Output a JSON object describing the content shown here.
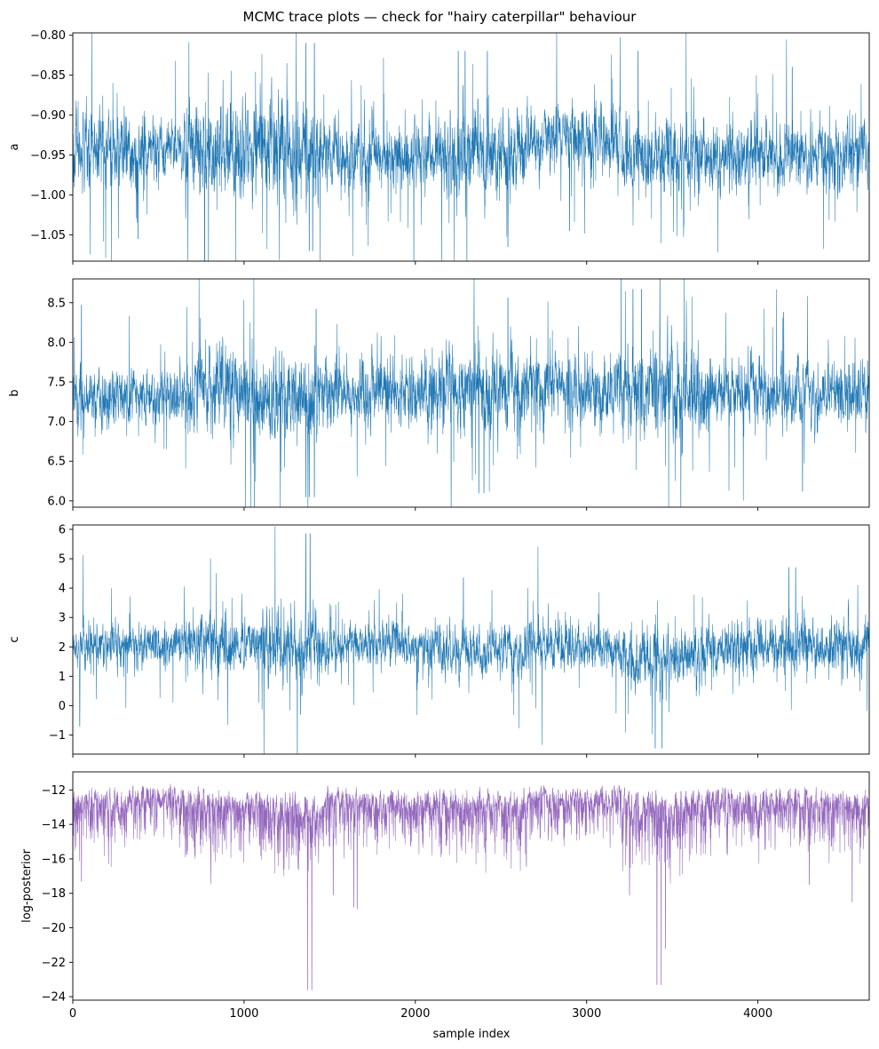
{
  "figure": {
    "title": "MCMC trace plots — check for \"hairy caterpillar\" behaviour",
    "xlabel": "sample index"
  },
  "colors": {
    "trace_blue": "#1f77b4",
    "trace_purple": "#9467bd"
  },
  "chart_data": [
    {
      "type": "line",
      "ylabel": "a",
      "color": "#1f77b4",
      "x_range": [
        0,
        4650
      ],
      "ylim": [
        -1.083,
        -0.797
      ],
      "yticks": [
        -1.05,
        -1.0,
        -0.95,
        -0.9,
        -0.85,
        -0.8
      ],
      "ytick_labels": [
        "−1.05",
        "−1.00",
        "−0.95",
        "−0.90",
        "−0.85",
        "−0.80"
      ],
      "xticks": [
        0,
        1000,
        2000,
        3000,
        4000
      ],
      "xtick_labels_shown": false,
      "n_samples": 4650,
      "center": -0.945,
      "typical_band": [
        -0.99,
        -0.9
      ],
      "observed_range": [
        -1.07,
        -0.81
      ],
      "segments": [
        {
          "x": [
            0,
            350
          ],
          "band": [
            -0.99,
            -0.9
          ]
        },
        {
          "x": [
            350,
            650
          ],
          "band": [
            -0.98,
            -0.91
          ]
        },
        {
          "x": [
            650,
            1100
          ],
          "band": [
            -1.0,
            -0.88
          ]
        },
        {
          "x": [
            1100,
            1450
          ],
          "band": [
            -1.01,
            -0.88
          ]
        },
        {
          "x": [
            1450,
            2150
          ],
          "band": [
            -0.99,
            -0.91
          ]
        },
        {
          "x": [
            2150,
            2650
          ],
          "band": [
            -1.0,
            -0.9
          ]
        },
        {
          "x": [
            2650,
            3200
          ],
          "band": [
            -0.97,
            -0.89
          ]
        },
        {
          "x": [
            3200,
            3700
          ],
          "band": [
            -1.0,
            -0.91
          ]
        },
        {
          "x": [
            3700,
            4650
          ],
          "band": [
            -0.99,
            -0.91
          ]
        }
      ],
      "spikes": [
        {
          "x": 1360,
          "y": -0.81
        },
        {
          "x": 1380,
          "y": -0.81
        },
        {
          "x": 1410,
          "y": -0.81
        },
        {
          "x": 2250,
          "y": -0.82
        },
        {
          "x": 2290,
          "y": -0.82
        },
        {
          "x": 2420,
          "y": -0.82
        },
        {
          "x": 3300,
          "y": -0.82
        },
        {
          "x": 4200,
          "y": -0.84
        },
        {
          "x": 1380,
          "y": -1.07
        },
        {
          "x": 1400,
          "y": -1.07
        },
        {
          "x": 2540,
          "y": -1.065
        },
        {
          "x": 380,
          "y": -1.055
        },
        {
          "x": 2900,
          "y": -1.045
        }
      ]
    },
    {
      "type": "line",
      "ylabel": "b",
      "color": "#1f77b4",
      "x_range": [
        0,
        4650
      ],
      "ylim": [
        5.92,
        8.8
      ],
      "yticks": [
        6.0,
        6.5,
        7.0,
        7.5,
        8.0,
        8.5
      ],
      "ytick_labels": [
        "6.0",
        "6.5",
        "7.0",
        "7.5",
        "8.0",
        "8.5"
      ],
      "xticks": [
        0,
        1000,
        2000,
        3000,
        4000
      ],
      "xtick_labels_shown": false,
      "n_samples": 4650,
      "center": 7.33,
      "typical_band": [
        6.9,
        7.75
      ],
      "observed_range": [
        6.05,
        8.67
      ],
      "segments": [
        {
          "x": [
            0,
            350
          ],
          "band": [
            6.95,
            7.7
          ]
        },
        {
          "x": [
            350,
            650
          ],
          "band": [
            7.0,
            7.65
          ]
        },
        {
          "x": [
            650,
            1100
          ],
          "band": [
            6.85,
            7.85
          ]
        },
        {
          "x": [
            1100,
            1450
          ],
          "band": [
            6.75,
            7.85
          ]
        },
        {
          "x": [
            1450,
            2150
          ],
          "band": [
            6.95,
            7.75
          ]
        },
        {
          "x": [
            2150,
            2650
          ],
          "band": [
            6.9,
            7.95
          ]
        },
        {
          "x": [
            2650,
            3200
          ],
          "band": [
            7.0,
            7.8
          ]
        },
        {
          "x": [
            3200,
            3700
          ],
          "band": [
            6.85,
            7.95
          ]
        },
        {
          "x": [
            3700,
            4650
          ],
          "band": [
            6.95,
            7.75
          ]
        }
      ],
      "spikes": [
        {
          "x": 1360,
          "y": 6.05
        },
        {
          "x": 1380,
          "y": 6.05
        },
        {
          "x": 1410,
          "y": 6.05
        },
        {
          "x": 3270,
          "y": 8.67
        },
        {
          "x": 3320,
          "y": 8.67
        },
        {
          "x": 2540,
          "y": 8.56
        },
        {
          "x": 50,
          "y": 8.47
        },
        {
          "x": 4150,
          "y": 8.38
        },
        {
          "x": 1420,
          "y": 8.42
        },
        {
          "x": 2370,
          "y": 6.1
        },
        {
          "x": 2400,
          "y": 6.1
        },
        {
          "x": 4260,
          "y": 6.12
        }
      ]
    },
    {
      "type": "line",
      "ylabel": "c",
      "color": "#1f77b4",
      "x_range": [
        0,
        4650
      ],
      "ylim": [
        -1.65,
        6.15
      ],
      "yticks": [
        -1,
        0,
        1,
        2,
        3,
        4,
        5,
        6
      ],
      "ytick_labels": [
        "−1",
        "0",
        "1",
        "2",
        "3",
        "4",
        "5",
        "6"
      ],
      "xticks": [
        0,
        1000,
        2000,
        3000,
        4000
      ],
      "xtick_labels_shown": false,
      "n_samples": 4650,
      "center": 2.0,
      "typical_band": [
        1.2,
        2.8
      ],
      "observed_range": [
        -1.45,
        5.85
      ],
      "segments": [
        {
          "x": [
            0,
            350
          ],
          "band": [
            1.3,
            2.8
          ]
        },
        {
          "x": [
            350,
            650
          ],
          "band": [
            1.4,
            2.7
          ]
        },
        {
          "x": [
            650,
            1100
          ],
          "band": [
            1.2,
            3.0
          ]
        },
        {
          "x": [
            1100,
            1450
          ],
          "band": [
            1.0,
            3.2
          ]
        },
        {
          "x": [
            1450,
            2150
          ],
          "band": [
            1.3,
            2.8
          ]
        },
        {
          "x": [
            2150,
            2650
          ],
          "band": [
            1.0,
            2.6
          ]
        },
        {
          "x": [
            2650,
            3200
          ],
          "band": [
            1.3,
            2.8
          ]
        },
        {
          "x": [
            3200,
            3700
          ],
          "band": [
            0.7,
            2.5
          ]
        },
        {
          "x": [
            3700,
            4650
          ],
          "band": [
            1.1,
            2.9
          ]
        }
      ],
      "spikes": [
        {
          "x": 1360,
          "y": 5.85
        },
        {
          "x": 1385,
          "y": 5.85
        },
        {
          "x": 4180,
          "y": 4.7
        },
        {
          "x": 4220,
          "y": 4.7
        },
        {
          "x": 2280,
          "y": 4.35
        },
        {
          "x": 3400,
          "y": -1.45
        },
        {
          "x": 3440,
          "y": -1.45
        },
        {
          "x": 40,
          "y": -0.7
        },
        {
          "x": 1330,
          "y": -0.3
        }
      ]
    },
    {
      "type": "line",
      "ylabel": "log-posterior",
      "color": "#9467bd",
      "x_range": [
        0,
        4650
      ],
      "ylim": [
        -24.2,
        -10.95
      ],
      "yticks": [
        -24,
        -22,
        -20,
        -18,
        -16,
        -14,
        -12
      ],
      "ytick_labels": [
        "−24",
        "−22",
        "−20",
        "−18",
        "−16",
        "−14",
        "−12"
      ],
      "xticks": [
        0,
        1000,
        2000,
        3000,
        4000
      ],
      "xtick_labels": [
        "0",
        "1000",
        "2000",
        "3000",
        "4000"
      ],
      "xtick_labels_shown": true,
      "n_samples": 4650,
      "upper_bound": -11.4,
      "typical_band": [
        -14.2,
        -11.5
      ],
      "observed_range": [
        -23.6,
        -11.4
      ],
      "segments": [
        {
          "x": [
            0,
            350
          ],
          "band": [
            -14.5,
            -11.6
          ]
        },
        {
          "x": [
            350,
            650
          ],
          "band": [
            -14.0,
            -11.5
          ]
        },
        {
          "x": [
            650,
            1100
          ],
          "band": [
            -15.0,
            -11.5
          ]
        },
        {
          "x": [
            1100,
            1450
          ],
          "band": [
            -15.5,
            -11.6
          ]
        },
        {
          "x": [
            1450,
            2150
          ],
          "band": [
            -14.5,
            -11.6
          ]
        },
        {
          "x": [
            2150,
            2650
          ],
          "band": [
            -14.8,
            -11.5
          ]
        },
        {
          "x": [
            2650,
            3200
          ],
          "band": [
            -14.2,
            -11.5
          ]
        },
        {
          "x": [
            3200,
            3700
          ],
          "band": [
            -15.2,
            -11.5
          ]
        },
        {
          "x": [
            3700,
            4650
          ],
          "band": [
            -14.5,
            -11.5
          ]
        }
      ],
      "spikes": [
        {
          "x": 1370,
          "y": -23.6
        },
        {
          "x": 1395,
          "y": -23.6
        },
        {
          "x": 3410,
          "y": -23.3
        },
        {
          "x": 3435,
          "y": -23.3
        },
        {
          "x": 3460,
          "y": -21.2
        },
        {
          "x": 1520,
          "y": -18.1
        },
        {
          "x": 1640,
          "y": -18.8
        },
        {
          "x": 1660,
          "y": -18.9
        },
        {
          "x": 3250,
          "y": -18.1
        },
        {
          "x": 4550,
          "y": -18.5
        },
        {
          "x": 50,
          "y": -17.3
        },
        {
          "x": 4300,
          "y": -17.5
        }
      ]
    }
  ]
}
